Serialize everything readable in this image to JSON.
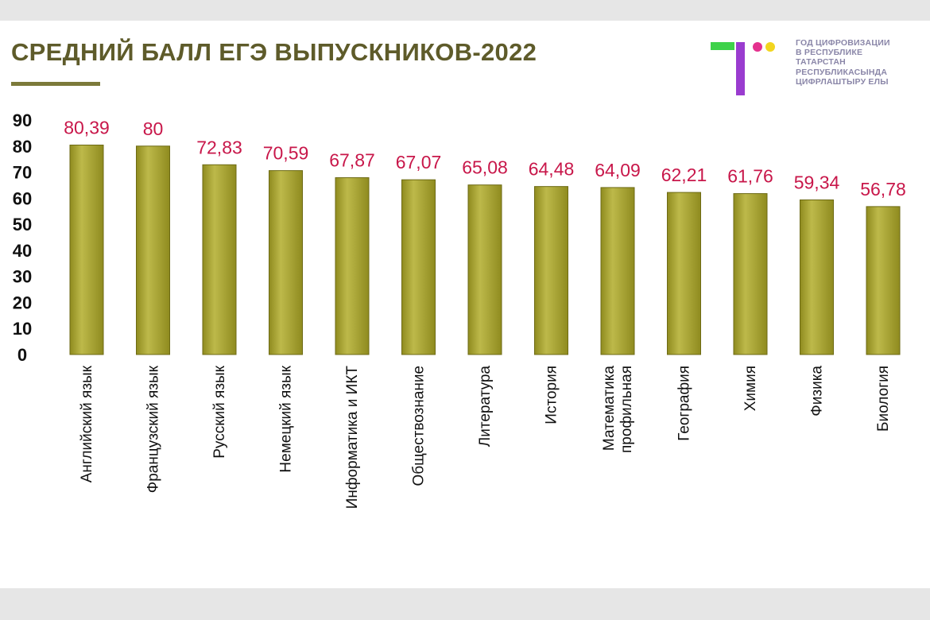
{
  "header": {
    "title": "СРЕДНИЙ БАЛЛ ЕГЭ ВЫПУСКНИКОВ-2022"
  },
  "logo": {
    "text_lines": [
      "ГОД ЦИФРОВИЗАЦИИ",
      "В РЕСПУБЛИКЕ",
      "ТАТАРСТАН",
      "РЕСПУБЛИКАСЫНДА",
      "ЦИФРЛАШТЫРУ ЕЛЫ"
    ],
    "colors": {
      "green": "#3ed24a",
      "purple": "#9a3ccf",
      "pink": "#e4318e",
      "yellow": "#f2d51f"
    }
  },
  "colors": {
    "title": "#5e5b2a",
    "bar": "#8f8b1f",
    "bar_highlight": "#bdb94a",
    "data_label": "#c8174a",
    "slide_background": "#ffffff",
    "frame_background": "#e6e6e6"
  },
  "chart_data": {
    "type": "bar",
    "categories": [
      [
        "Английский язык"
      ],
      [
        "Французский язык"
      ],
      [
        "Русский язык"
      ],
      [
        "Немецкий язык"
      ],
      [
        "Информатика и ИКТ"
      ],
      [
        "Обществознание"
      ],
      [
        "Литература"
      ],
      [
        "История"
      ],
      [
        "Математика",
        "профильная"
      ],
      [
        "География"
      ],
      [
        "Химия"
      ],
      [
        "Физика"
      ],
      [
        "Биология"
      ]
    ],
    "values": [
      80.39,
      80,
      72.83,
      70.59,
      67.87,
      67.07,
      65.08,
      64.48,
      64.09,
      62.21,
      61.76,
      59.34,
      56.78
    ],
    "data_labels": [
      "80,39",
      "80",
      "72,83",
      "70,59",
      "67,87",
      "67,07",
      "65,08",
      "64,48",
      "64,09",
      "62,21",
      "61,76",
      "59,34",
      "56,78"
    ],
    "y_ticks": [
      0,
      10,
      20,
      30,
      40,
      50,
      60,
      70,
      80,
      90
    ],
    "ylim": [
      0,
      90
    ],
    "grid": false,
    "legend": "none"
  }
}
